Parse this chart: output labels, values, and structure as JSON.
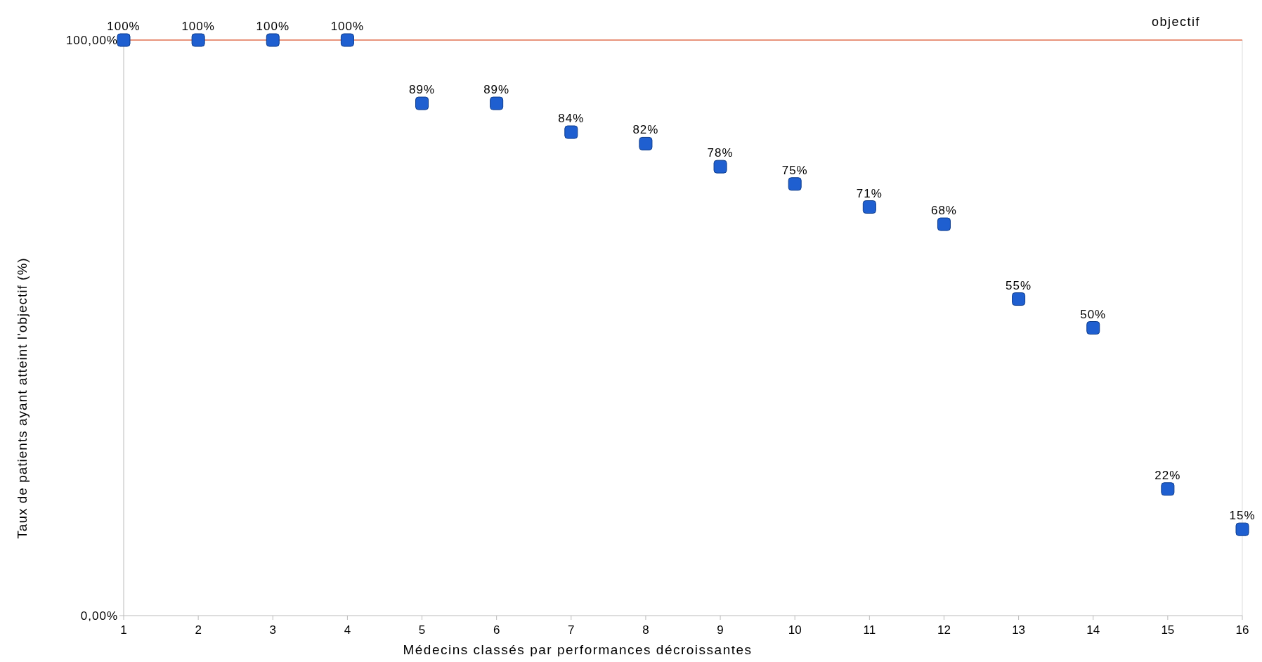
{
  "chart_data": {
    "type": "scatter",
    "xlabel": "Médecins classés par performances décroissantes",
    "ylabel": "Taux de patients ayant atteint l'objectif (%)",
    "x": [
      1,
      2,
      3,
      4,
      5,
      6,
      7,
      8,
      9,
      10,
      11,
      12,
      13,
      14,
      15,
      16
    ],
    "series": [
      {
        "color": "#1f5fd0",
        "values": [
          100,
          100,
          100,
          100,
          89,
          89,
          84,
          82,
          78,
          75,
          71,
          68,
          55,
          50,
          22,
          15
        ]
      }
    ],
    "xlim": [
      1,
      16
    ],
    "xticks": [
      1,
      2,
      3,
      4,
      5,
      6,
      7,
      8,
      9,
      10,
      11,
      12,
      13,
      14,
      15,
      16
    ],
    "ylim": [
      0,
      100
    ],
    "yticks": [
      {
        "value": 0,
        "label": "0,00%"
      },
      {
        "value": 100,
        "label": "100,00%"
      }
    ],
    "ref_lines": [
      {
        "axis": "y",
        "value": 100,
        "label": "objectif",
        "color": "#e07050"
      }
    ],
    "value_labels": [
      "100%",
      "100%",
      "100%",
      "100%",
      "89%",
      "89%",
      "84%",
      "82%",
      "78%",
      "75%",
      "71%",
      "68%",
      "55%",
      "50%",
      "22%",
      "15%"
    ],
    "marker": "square",
    "grid": false
  }
}
